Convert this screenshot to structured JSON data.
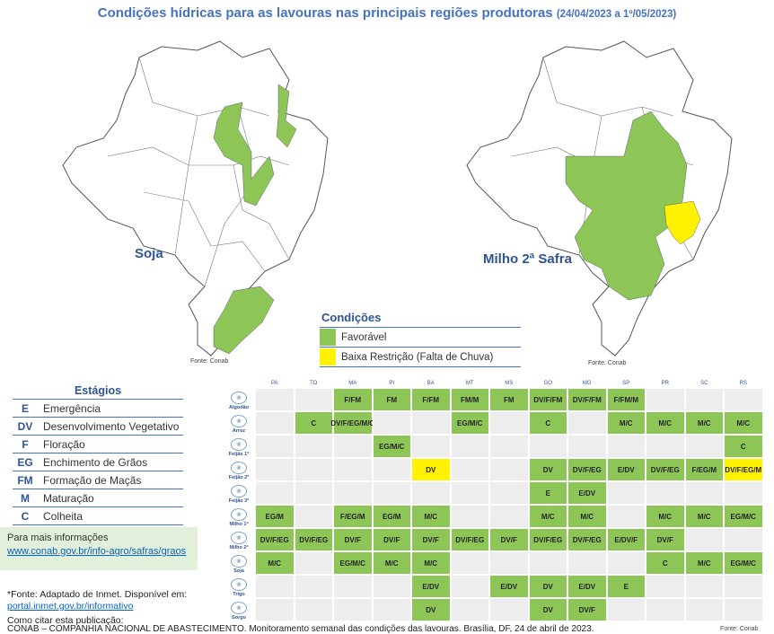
{
  "title": {
    "main": "Condições hídricas para as lavouras nas principais regiões produtoras",
    "period": "(24/04/2023 a 1º/05/2023)"
  },
  "maps": [
    {
      "label": "Soja",
      "fonte": "Fonte: Conab"
    },
    {
      "label": "Milho 2ª Safra",
      "fonte": "Fonte: Conab"
    }
  ],
  "colors": {
    "favoravel": "#8DC657",
    "baixa_restricao": "#FFF200",
    "accent": "#4472C4",
    "heading": "#2F5496"
  },
  "condicoes": {
    "title": "Condições",
    "items": [
      {
        "label": "Favorável",
        "color": "#8DC657"
      },
      {
        "label": "Baixa Restrição (Falta de Chuva)",
        "color": "#FFF200"
      }
    ]
  },
  "estagios": {
    "title": "Estágios",
    "items": [
      {
        "code": "E",
        "label": "Emergência"
      },
      {
        "code": "DV",
        "label": "Desenvolvimento Vegetativo"
      },
      {
        "code": "F",
        "label": "Floração"
      },
      {
        "code": "EG",
        "label": "Enchimento de Grãos"
      },
      {
        "code": "FM",
        "label": "Formação de Maçãs"
      },
      {
        "code": "M",
        "label": "Maturação"
      },
      {
        "code": "C",
        "label": "Colheita"
      }
    ]
  },
  "info": {
    "text": "Para mais informações",
    "link": "www.conab.gov.br/info-agro/safras/graos"
  },
  "footer": {
    "fonte": "*Fonte: Adaptado de Inmet. Disponível em:",
    "fonte_link": "portal.inmet.gov.br/informativo",
    "citar": "Como citar esta publicação:",
    "citation": "CONAB – COMPANHIA NACIONAL DE ABASTECIMENTO. Monitoramento semanal das condições das lavouras. Brasília, DF, 24 de abril de 2023.",
    "table_fonte": "Fonte: Conab"
  },
  "table": {
    "states": [
      "PA",
      "TO",
      "MA",
      "PI",
      "BA",
      "MT",
      "MS",
      "GO",
      "MG",
      "SP",
      "PR",
      "SC",
      "RS"
    ],
    "rows": [
      {
        "crop": "Algodão",
        "cells": [
          "",
          "",
          "F/FM",
          "FM",
          "F/FM",
          "FM/M",
          "FM",
          "DV/F/FM",
          "DV/F/FM",
          "F/FM/M",
          "",
          "",
          ""
        ]
      },
      {
        "crop": "Arroz",
        "cells": [
          "",
          "C",
          "DV/F/EG/M/C",
          "",
          "",
          "EG/M/C",
          "",
          "C",
          "",
          "M/C",
          "M/C",
          "M/C",
          "M/C"
        ]
      },
      {
        "crop": "Feijão 1ª",
        "cells": [
          "",
          "",
          "",
          "EG/M/C",
          "",
          "",
          "",
          "",
          "",
          "",
          "",
          "",
          "C"
        ]
      },
      {
        "crop": "Feijão 2ª",
        "cells": [
          "",
          "",
          "",
          "",
          "DV",
          "",
          "",
          "DV",
          "DV/F/EG",
          "E/DV",
          "DV/F/EG",
          "F/EG/M",
          "DV/F/EG/M"
        ],
        "yellow": [
          4,
          12
        ]
      },
      {
        "crop": "Feijão 3ª",
        "cells": [
          "",
          "",
          "",
          "",
          "",
          "",
          "",
          "E",
          "E/DV",
          "",
          "",
          "",
          ""
        ]
      },
      {
        "crop": "Milho 1ª",
        "cells": [
          "EG/M",
          "",
          "F/EG/M",
          "EG/M",
          "M/C",
          "",
          "",
          "M/C",
          "M/C",
          "",
          "M/C",
          "M/C",
          "EG/M/C"
        ]
      },
      {
        "crop": "Milho 2ª",
        "cells": [
          "DV/F/EG",
          "DV/F/EG",
          "DV/F",
          "DV/F",
          "DV/F",
          "DV/F/EG",
          "DV/F",
          "DV/F/EG",
          "DV/F/EG",
          "E/DV/F",
          "DV/F",
          "",
          ""
        ]
      },
      {
        "crop": "Soja",
        "cells": [
          "M/C",
          "",
          "EG/M/C",
          "M/C",
          "M/C",
          "",
          "",
          "",
          "",
          "",
          "C",
          "M/C",
          "EG/M/C"
        ]
      },
      {
        "crop": "Trigo",
        "cells": [
          "",
          "",
          "",
          "",
          "E/DV",
          "",
          "E/DV",
          "DV",
          "E/DV",
          "E",
          "",
          "",
          ""
        ]
      },
      {
        "crop": "Sorgo",
        "cells": [
          "",
          "",
          "",
          "",
          "DV",
          "",
          "",
          "DV",
          "DV/F",
          "",
          "",
          "",
          ""
        ]
      }
    ]
  }
}
